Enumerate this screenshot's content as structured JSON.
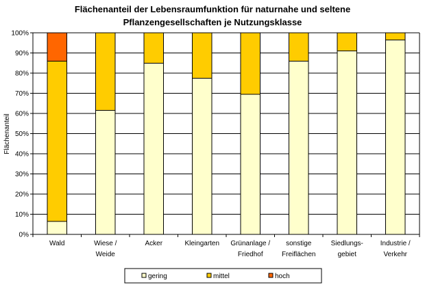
{
  "chart_data": {
    "type": "bar",
    "stacked": "percent",
    "title": "Flächenanteil der Lebensraumfunktion für naturnahe und seltene Pflanzengesellschaften je Nutzungsklasse",
    "title_lines": [
      "Flächenanteil der Lebensraumfunktion für naturnahe und seltene",
      "Pflanzengesellschaften je Nutzungsklasse"
    ],
    "xlabel": "",
    "ylabel": "Flächenanteil",
    "ylim": [
      0,
      100
    ],
    "yticks": [
      "0%",
      "10%",
      "20%",
      "30%",
      "40%",
      "50%",
      "60%",
      "70%",
      "80%",
      "90%",
      "100%"
    ],
    "grid": "horizontal",
    "legend_position": "bottom",
    "categories": [
      "Wald",
      "Wiese / Weide",
      "Acker",
      "Kleingarten",
      "Grünanlage / Friedhof",
      "sonstige Freiflächen",
      "Siedlungs-gebiet",
      "Industrie / Verkehr"
    ],
    "category_label_lines": [
      [
        "Wald"
      ],
      [
        "Wiese /",
        "Weide"
      ],
      [
        "Acker"
      ],
      [
        "Kleingarten"
      ],
      [
        "Grünanlage /",
        "Friedhof"
      ],
      [
        "sonstige",
        "Freiflächen"
      ],
      [
        "Siedlungs-",
        "gebiet"
      ],
      [
        "Industrie /",
        "Verkehr"
      ]
    ],
    "series": [
      {
        "name": "gering",
        "color": "#FFFFCC",
        "values": [
          6.5,
          61.5,
          85,
          77.5,
          69.5,
          86,
          91,
          96.5
        ]
      },
      {
        "name": "mittel",
        "color": "#FFCC00",
        "values": [
          79.5,
          38.5,
          15,
          22.5,
          30.5,
          14,
          9,
          3.5
        ]
      },
      {
        "name": "hoch",
        "color": "#FF6600",
        "values": [
          14,
          0,
          0,
          0,
          0,
          0,
          0,
          0
        ]
      }
    ]
  }
}
